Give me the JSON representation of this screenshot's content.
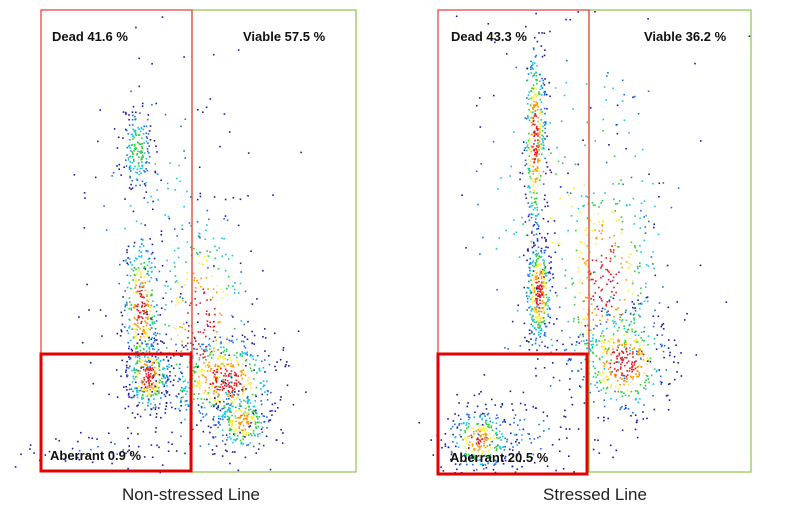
{
  "chart_data": [
    {
      "type": "scatter",
      "title": "Non-stressed Line",
      "seed": 11,
      "gates": [
        {
          "name": "Dead",
          "label": "Dead 41.6 %",
          "percent": 41.6,
          "color": "#e53935"
        },
        {
          "name": "Viable",
          "label": "Viable 57.5 %",
          "percent": 57.5,
          "color": "#8bc34a"
        },
        {
          "name": "Aberrant",
          "label": "Aberrant 0.9 %",
          "percent": 0.9,
          "color": "#e60000"
        }
      ],
      "clusters": [
        {
          "x": 0.7,
          "y": 0.7,
          "sx": 0.045,
          "sy": 0.05,
          "n": 180
        },
        {
          "x": 0.72,
          "y": 0.36,
          "sx": 0.05,
          "sy": 0.08,
          "n": 320
        },
        {
          "x": 0.76,
          "y": 0.21,
          "sx": 0.06,
          "sy": 0.04,
          "n": 320
        },
        {
          "x": 1.18,
          "y": 0.2,
          "sx": 0.15,
          "sy": 0.05,
          "n": 480
        },
        {
          "x": 1.28,
          "y": 0.11,
          "sx": 0.08,
          "sy": 0.035,
          "n": 260
        },
        {
          "x": 1.05,
          "y": 0.32,
          "sx": 0.15,
          "sy": 0.14,
          "n": 320
        },
        {
          "x": 0.8,
          "y": 0.55,
          "sx": 0.25,
          "sy": 0.25,
          "n": 120
        },
        {
          "x": 0.5,
          "y": 0.05,
          "sx": 0.25,
          "sy": 0.03,
          "n": 60
        }
      ]
    },
    {
      "type": "scatter",
      "title": "Stressed Line",
      "seed": 29,
      "gates": [
        {
          "name": "Dead",
          "label": "Dead 43.3 %",
          "percent": 43.3,
          "color": "#e53935"
        },
        {
          "name": "Viable",
          "label": "Viable 36.2 %",
          "percent": 36.2,
          "color": "#8bc34a"
        },
        {
          "name": "Aberrant",
          "label": "Aberrant 20.5 %",
          "percent": 20.5,
          "color": "#e60000"
        }
      ],
      "clusters": [
        {
          "x": 0.68,
          "y": 0.72,
          "sx": 0.03,
          "sy": 0.11,
          "n": 380
        },
        {
          "x": 0.7,
          "y": 0.39,
          "sx": 0.035,
          "sy": 0.06,
          "n": 360
        },
        {
          "x": 0.38,
          "y": 0.07,
          "sx": 0.09,
          "sy": 0.035,
          "n": 280
        },
        {
          "x": 1.15,
          "y": 0.24,
          "sx": 0.13,
          "sy": 0.06,
          "n": 420
        },
        {
          "x": 1.05,
          "y": 0.42,
          "sx": 0.15,
          "sy": 0.14,
          "n": 360
        },
        {
          "x": 0.9,
          "y": 0.55,
          "sx": 0.35,
          "sy": 0.25,
          "n": 200
        },
        {
          "x": 0.55,
          "y": 0.08,
          "sx": 0.2,
          "sy": 0.05,
          "n": 100
        }
      ]
    }
  ]
}
